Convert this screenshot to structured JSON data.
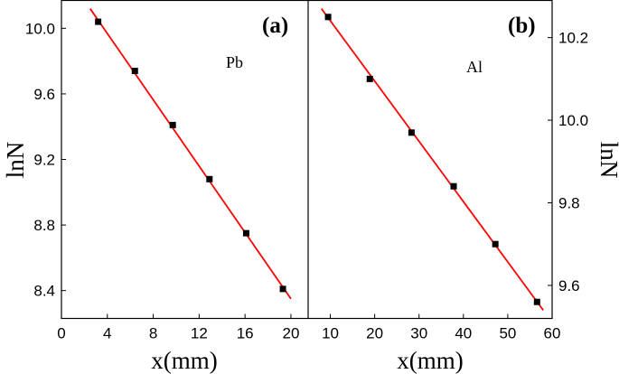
{
  "chart_data": [
    {
      "type": "scatter",
      "panel_label": "(a)",
      "annotation": "Pb",
      "xlabel": "x(mm)",
      "ylabel": "lnN",
      "xlim": [
        0,
        21.5
      ],
      "ylim": [
        8.23,
        10.17
      ],
      "xticks": [
        0,
        4,
        8,
        12,
        16,
        20
      ],
      "yticks": [
        8.4,
        8.8,
        9.2,
        9.6,
        10.0
      ],
      "ytick_labels": [
        "8.4",
        "8.8",
        "9.2",
        "9.6",
        "10.0"
      ],
      "y_axis_side": "left",
      "series": [
        {
          "x": [
            3.2,
            6.4,
            9.7,
            12.9,
            16.1,
            19.3
          ],
          "y": [
            10.04,
            9.74,
            9.41,
            9.08,
            8.75,
            8.41
          ]
        }
      ],
      "fit_line": {
        "x": [
          2.5,
          20.0
        ],
        "y": [
          10.12,
          8.35
        ]
      },
      "marker_color": "#000000",
      "line_color": "#ff0000"
    },
    {
      "type": "scatter",
      "panel_label": "(b)",
      "annotation": "Al",
      "xlabel": "x(mm)",
      "ylabel": "lnN",
      "xlim": [
        5,
        60
      ],
      "ylim": [
        9.52,
        10.29
      ],
      "xticks": [
        10,
        20,
        30,
        40,
        50,
        60
      ],
      "yticks": [
        9.6,
        9.8,
        10.0,
        10.2
      ],
      "ytick_labels": [
        "9.6",
        "9.8",
        "10.0",
        "10.2"
      ],
      "y_axis_side": "right",
      "series": [
        {
          "x": [
            9.5,
            18.9,
            28.3,
            37.8,
            47.2,
            56.6
          ],
          "y": [
            10.25,
            10.1,
            9.97,
            9.84,
            9.7,
            9.56
          ]
        }
      ],
      "fit_line": {
        "x": [
          8.0,
          58.0
        ],
        "y": [
          10.27,
          9.54
        ]
      },
      "marker_color": "#000000",
      "line_color": "#ff0000"
    }
  ]
}
